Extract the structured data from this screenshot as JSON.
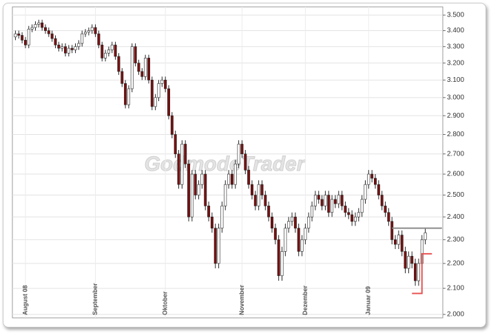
{
  "chart_data": {
    "type": "candlestick",
    "watermark": "GodmodeTrader",
    "log_scale": true,
    "grid": true,
    "up_color": "#ffffff",
    "down_color": "#7a1010",
    "edge_color": "#222222",
    "categories": [
      null,
      null,
      null,
      "August 08",
      null,
      null,
      null,
      null,
      null,
      null,
      null,
      null,
      null,
      null,
      null,
      null,
      null,
      null,
      null,
      null,
      null,
      null,
      null,
      null,
      "September",
      null,
      null,
      null,
      null,
      null,
      null,
      null,
      null,
      null,
      null,
      null,
      null,
      null,
      null,
      null,
      null,
      null,
      null,
      null,
      null,
      "Oktober",
      null,
      null,
      null,
      null,
      null,
      null,
      null,
      null,
      null,
      null,
      null,
      null,
      null,
      null,
      null,
      null,
      null,
      null,
      null,
      null,
      null,
      null,
      "November",
      null,
      null,
      null,
      null,
      null,
      null,
      null,
      null,
      null,
      null,
      null,
      null,
      null,
      null,
      null,
      null,
      null,
      null,
      "Dezember",
      null,
      null,
      null,
      null,
      null,
      null,
      null,
      null,
      null,
      null,
      null,
      null,
      null,
      null,
      null,
      null,
      null,
      null,
      "Januar 09",
      null,
      null,
      null,
      null,
      null,
      null,
      null,
      null,
      null,
      null,
      null,
      null,
      null,
      null,
      null,
      null,
      null
    ],
    "open": [
      3360,
      3380,
      3370,
      3340,
      3310,
      3410,
      3420,
      3440,
      3450,
      3420,
      3400,
      3380,
      3350,
      3310,
      3290,
      3300,
      3260,
      3290,
      3280,
      3300,
      3320,
      3380,
      3390,
      3400,
      3420,
      3380,
      3310,
      3230,
      3260,
      3280,
      3310,
      3240,
      3150,
      3080,
      2960,
      3050,
      3300,
      3200,
      3150,
      3120,
      3230,
      3100,
      2950,
      3000,
      3080,
      3100,
      3050,
      2900,
      2800,
      2700,
      2550,
      2750,
      2650,
      2400,
      2600,
      2500,
      2550,
      2600,
      2450,
      2400,
      2350,
      2200,
      2350,
      2450,
      2550,
      2600,
      2550,
      2650,
      2750,
      2700,
      2620,
      2550,
      2500,
      2450,
      2550,
      2500,
      2450,
      2400,
      2350,
      2300,
      2150,
      2250,
      2350,
      2380,
      2400,
      2350,
      2250,
      2300,
      2350,
      2400,
      2450,
      2500,
      2480,
      2450,
      2500,
      2420,
      2480,
      2460,
      2500,
      2450,
      2420,
      2410,
      2380,
      2400,
      2420,
      2480,
      2550,
      2600,
      2580,
      2550,
      2500,
      2450,
      2420,
      2380,
      2300,
      2280,
      2320,
      2250,
      2180,
      2230,
      2200,
      2130,
      2200,
      2300
    ],
    "high": [
      3400,
      3400,
      3390,
      3360,
      3430,
      3440,
      3460,
      3470,
      3470,
      3440,
      3420,
      3400,
      3370,
      3330,
      3320,
      3320,
      3310,
      3310,
      3320,
      3340,
      3400,
      3410,
      3420,
      3440,
      3440,
      3400,
      3330,
      3280,
      3300,
      3330,
      3330,
      3260,
      3170,
      3100,
      3070,
      3320,
      3320,
      3220,
      3170,
      3250,
      3250,
      3120,
      3020,
      3100,
      3120,
      3120,
      3070,
      2920,
      2820,
      2720,
      2770,
      2770,
      2670,
      2620,
      2620,
      2570,
      2620,
      2620,
      2470,
      2420,
      2370,
      2370,
      2470,
      2570,
      2620,
      2620,
      2670,
      2770,
      2770,
      2720,
      2640,
      2570,
      2520,
      2570,
      2570,
      2520,
      2470,
      2420,
      2370,
      2320,
      2270,
      2370,
      2400,
      2420,
      2420,
      2370,
      2320,
      2370,
      2420,
      2470,
      2520,
      2520,
      2500,
      2520,
      2520,
      2500,
      2500,
      2520,
      2520,
      2470,
      2440,
      2430,
      2420,
      2440,
      2500,
      2570,
      2620,
      2620,
      2600,
      2570,
      2520,
      2470,
      2440,
      2400,
      2320,
      2340,
      2340,
      2270,
      2250,
      2250,
      2220,
      2220,
      2320,
      2350
    ],
    "low": [
      3340,
      3350,
      3320,
      3290,
      3290,
      3390,
      3400,
      3420,
      3400,
      3380,
      3360,
      3330,
      3290,
      3270,
      3270,
      3240,
      3240,
      3260,
      3260,
      3280,
      3300,
      3360,
      3370,
      3380,
      3360,
      3290,
      3210,
      3210,
      3240,
      3260,
      3220,
      3130,
      3060,
      2940,
      2940,
      3030,
      3180,
      3130,
      3100,
      3100,
      3080,
      2930,
      2930,
      2980,
      3060,
      3030,
      2880,
      2780,
      2680,
      2530,
      2530,
      2630,
      2380,
      2380,
      2480,
      2480,
      2530,
      2430,
      2380,
      2330,
      2180,
      2180,
      2330,
      2430,
      2530,
      2530,
      2530,
      2630,
      2680,
      2600,
      2530,
      2480,
      2430,
      2430,
      2480,
      2430,
      2380,
      2330,
      2280,
      2130,
      2130,
      2230,
      2330,
      2360,
      2330,
      2230,
      2230,
      2280,
      2330,
      2380,
      2430,
      2460,
      2430,
      2430,
      2400,
      2400,
      2440,
      2440,
      2430,
      2400,
      2390,
      2360,
      2360,
      2380,
      2400,
      2460,
      2530,
      2560,
      2530,
      2480,
      2430,
      2400,
      2360,
      2280,
      2260,
      2260,
      2230,
      2160,
      2160,
      2180,
      2110,
      2110,
      2180,
      2280
    ],
    "close": [
      3380,
      3370,
      3340,
      3310,
      3410,
      3420,
      3440,
      3450,
      3420,
      3400,
      3380,
      3350,
      3310,
      3290,
      3300,
      3260,
      3290,
      3280,
      3300,
      3320,
      3380,
      3390,
      3400,
      3420,
      3380,
      3310,
      3230,
      3260,
      3280,
      3310,
      3240,
      3150,
      3080,
      2960,
      3050,
      3300,
      3200,
      3150,
      3120,
      3230,
      3100,
      2950,
      3000,
      3080,
      3100,
      3050,
      2900,
      2800,
      2700,
      2550,
      2750,
      2650,
      2400,
      2600,
      2500,
      2550,
      2600,
      2450,
      2400,
      2350,
      2200,
      2350,
      2450,
      2550,
      2600,
      2550,
      2650,
      2750,
      2700,
      2620,
      2550,
      2500,
      2450,
      2550,
      2500,
      2450,
      2400,
      2350,
      2300,
      2150,
      2250,
      2350,
      2380,
      2400,
      2350,
      2250,
      2300,
      2350,
      2400,
      2450,
      2500,
      2480,
      2450,
      2500,
      2420,
      2480,
      2460,
      2500,
      2450,
      2420,
      2410,
      2380,
      2400,
      2420,
      2480,
      2550,
      2600,
      2580,
      2550,
      2500,
      2450,
      2420,
      2380,
      2300,
      2280,
      2320,
      2250,
      2180,
      2230,
      2200,
      2130,
      2200,
      2300,
      2330
    ],
    "levels": [
      {
        "color": "#8a8a8a",
        "value": 2350,
        "from": 113,
        "to": 128
      }
    ],
    "stop_line": {
      "color": "#e85050",
      "points": [
        [
          119,
          2080
        ],
        [
          122,
          2080
        ],
        [
          122,
          2240
        ],
        [
          125,
          2240
        ]
      ]
    },
    "ylim": [
      2000,
      3500
    ],
    "yticks": [
      {
        "value": 2000,
        "label": "2.000"
      },
      {
        "value": 2100,
        "label": "2.100"
      },
      {
        "value": 2200,
        "label": "2.200"
      },
      {
        "value": 2300,
        "label": "2.300"
      },
      {
        "value": 2400,
        "label": "2.400"
      },
      {
        "value": 2500,
        "label": "2.500"
      },
      {
        "value": 2600,
        "label": "2.600"
      },
      {
        "value": 2700,
        "label": "2.700"
      },
      {
        "value": 2800,
        "label": "2.800"
      },
      {
        "value": 2900,
        "label": "2.900"
      },
      {
        "value": 3000,
        "label": "3.000"
      },
      {
        "value": 3100,
        "label": "3.100"
      },
      {
        "value": 3200,
        "label": "3.200"
      },
      {
        "value": 3300,
        "label": "3.300"
      },
      {
        "value": 3400,
        "label": "3.400"
      },
      {
        "value": 3500,
        "label": "3.500"
      }
    ]
  }
}
